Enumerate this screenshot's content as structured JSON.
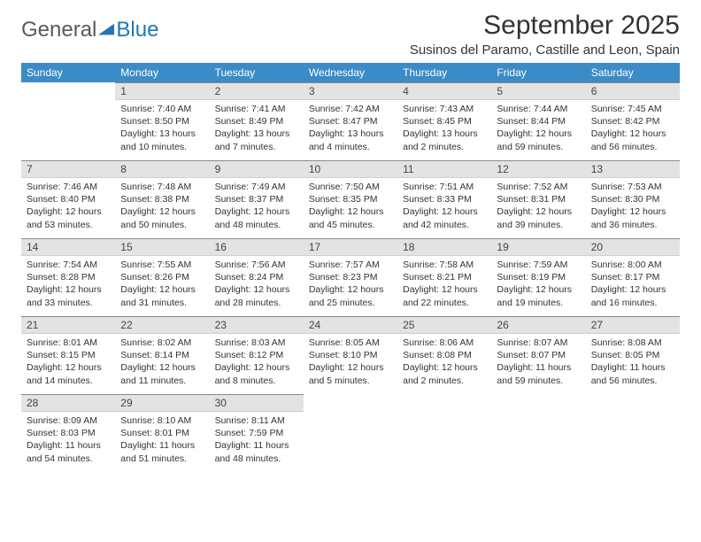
{
  "logo": {
    "text_general": "General",
    "text_blue": "Blue"
  },
  "title": "September 2025",
  "location": "Susinos del Paramo, Castille and Leon, Spain",
  "colors": {
    "header_bg": "#3b8bc6",
    "header_fg": "#ffffff",
    "daybar_bg": "#e3e3e3",
    "daybar_border_top": "#8a8a8a",
    "text": "#333333",
    "logo_gray": "#5a5a5a",
    "logo_blue": "#2176b6"
  },
  "weekdays": [
    "Sunday",
    "Monday",
    "Tuesday",
    "Wednesday",
    "Thursday",
    "Friday",
    "Saturday"
  ],
  "grid": [
    [
      null,
      {
        "n": "1",
        "sr": "7:40 AM",
        "ss": "8:50 PM",
        "dl": "13 hours and 10 minutes."
      },
      {
        "n": "2",
        "sr": "7:41 AM",
        "ss": "8:49 PM",
        "dl": "13 hours and 7 minutes."
      },
      {
        "n": "3",
        "sr": "7:42 AM",
        "ss": "8:47 PM",
        "dl": "13 hours and 4 minutes."
      },
      {
        "n": "4",
        "sr": "7:43 AM",
        "ss": "8:45 PM",
        "dl": "13 hours and 2 minutes."
      },
      {
        "n": "5",
        "sr": "7:44 AM",
        "ss": "8:44 PM",
        "dl": "12 hours and 59 minutes."
      },
      {
        "n": "6",
        "sr": "7:45 AM",
        "ss": "8:42 PM",
        "dl": "12 hours and 56 minutes."
      }
    ],
    [
      {
        "n": "7",
        "sr": "7:46 AM",
        "ss": "8:40 PM",
        "dl": "12 hours and 53 minutes."
      },
      {
        "n": "8",
        "sr": "7:48 AM",
        "ss": "8:38 PM",
        "dl": "12 hours and 50 minutes."
      },
      {
        "n": "9",
        "sr": "7:49 AM",
        "ss": "8:37 PM",
        "dl": "12 hours and 48 minutes."
      },
      {
        "n": "10",
        "sr": "7:50 AM",
        "ss": "8:35 PM",
        "dl": "12 hours and 45 minutes."
      },
      {
        "n": "11",
        "sr": "7:51 AM",
        "ss": "8:33 PM",
        "dl": "12 hours and 42 minutes."
      },
      {
        "n": "12",
        "sr": "7:52 AM",
        "ss": "8:31 PM",
        "dl": "12 hours and 39 minutes."
      },
      {
        "n": "13",
        "sr": "7:53 AM",
        "ss": "8:30 PM",
        "dl": "12 hours and 36 minutes."
      }
    ],
    [
      {
        "n": "14",
        "sr": "7:54 AM",
        "ss": "8:28 PM",
        "dl": "12 hours and 33 minutes."
      },
      {
        "n": "15",
        "sr": "7:55 AM",
        "ss": "8:26 PM",
        "dl": "12 hours and 31 minutes."
      },
      {
        "n": "16",
        "sr": "7:56 AM",
        "ss": "8:24 PM",
        "dl": "12 hours and 28 minutes."
      },
      {
        "n": "17",
        "sr": "7:57 AM",
        "ss": "8:23 PM",
        "dl": "12 hours and 25 minutes."
      },
      {
        "n": "18",
        "sr": "7:58 AM",
        "ss": "8:21 PM",
        "dl": "12 hours and 22 minutes."
      },
      {
        "n": "19",
        "sr": "7:59 AM",
        "ss": "8:19 PM",
        "dl": "12 hours and 19 minutes."
      },
      {
        "n": "20",
        "sr": "8:00 AM",
        "ss": "8:17 PM",
        "dl": "12 hours and 16 minutes."
      }
    ],
    [
      {
        "n": "21",
        "sr": "8:01 AM",
        "ss": "8:15 PM",
        "dl": "12 hours and 14 minutes."
      },
      {
        "n": "22",
        "sr": "8:02 AM",
        "ss": "8:14 PM",
        "dl": "12 hours and 11 minutes."
      },
      {
        "n": "23",
        "sr": "8:03 AM",
        "ss": "8:12 PM",
        "dl": "12 hours and 8 minutes."
      },
      {
        "n": "24",
        "sr": "8:05 AM",
        "ss": "8:10 PM",
        "dl": "12 hours and 5 minutes."
      },
      {
        "n": "25",
        "sr": "8:06 AM",
        "ss": "8:08 PM",
        "dl": "12 hours and 2 minutes."
      },
      {
        "n": "26",
        "sr": "8:07 AM",
        "ss": "8:07 PM",
        "dl": "11 hours and 59 minutes."
      },
      {
        "n": "27",
        "sr": "8:08 AM",
        "ss": "8:05 PM",
        "dl": "11 hours and 56 minutes."
      }
    ],
    [
      {
        "n": "28",
        "sr": "8:09 AM",
        "ss": "8:03 PM",
        "dl": "11 hours and 54 minutes."
      },
      {
        "n": "29",
        "sr": "8:10 AM",
        "ss": "8:01 PM",
        "dl": "11 hours and 51 minutes."
      },
      {
        "n": "30",
        "sr": "8:11 AM",
        "ss": "7:59 PM",
        "dl": "11 hours and 48 minutes."
      },
      null,
      null,
      null,
      null
    ]
  ],
  "labels": {
    "sunrise": "Sunrise:",
    "sunset": "Sunset:",
    "daylight": "Daylight:"
  }
}
